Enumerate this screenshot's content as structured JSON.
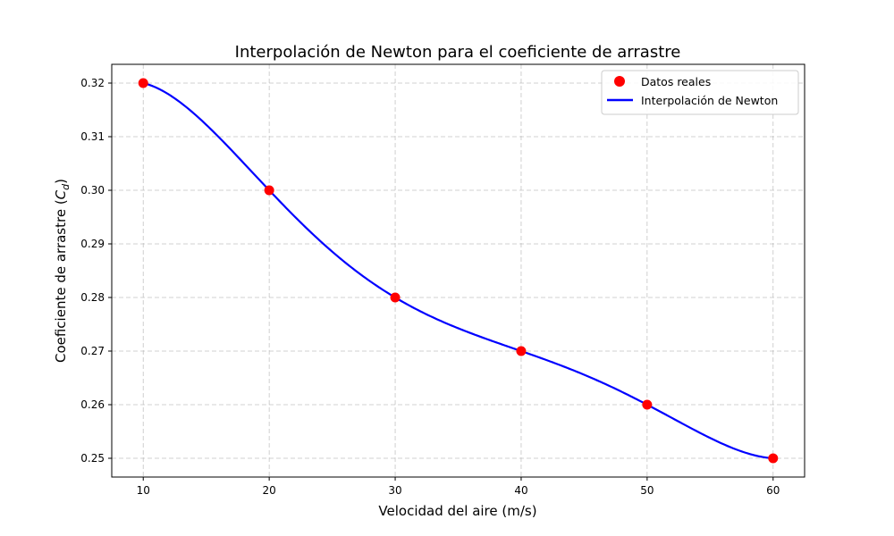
{
  "chart_data": {
    "type": "line",
    "title": "Interpolación de Newton para el coeficiente de arrastre",
    "xlabel": "Velocidad del aire (m/s)",
    "ylabel": "Coeficiente de arrastre (C_d)",
    "ylabel_main": "Coeficiente de arrastre (",
    "ylabel_symbol": "C",
    "ylabel_subscript": "d",
    "ylabel_close": ")",
    "xlim": [
      7.5,
      62.5
    ],
    "ylim": [
      0.2465,
      0.3235
    ],
    "xticks": [
      10,
      20,
      30,
      40,
      50,
      60
    ],
    "xtick_labels": [
      "10",
      "20",
      "30",
      "40",
      "50",
      "60"
    ],
    "yticks": [
      0.25,
      0.26,
      0.27,
      0.28,
      0.29,
      0.3,
      0.31,
      0.32
    ],
    "ytick_labels": [
      "0.25",
      "0.26",
      "0.27",
      "0.28",
      "0.29",
      "0.30",
      "0.31",
      "0.32"
    ],
    "grid": true,
    "legend_position": "top-right",
    "series": [
      {
        "name": "Datos reales",
        "kind": "scatter",
        "color": "#ff0000",
        "x": [
          10,
          20,
          30,
          40,
          50,
          60
        ],
        "y": [
          0.32,
          0.3,
          0.28,
          0.27,
          0.26,
          0.25
        ]
      },
      {
        "name": "Interpolación de Newton",
        "kind": "line",
        "color": "#0000ff",
        "interpolation": "newton-polynomial",
        "x": [
          10,
          20,
          30,
          40,
          50,
          60
        ],
        "y": [
          0.32,
          0.3,
          0.28,
          0.27,
          0.26,
          0.25
        ]
      }
    ]
  }
}
